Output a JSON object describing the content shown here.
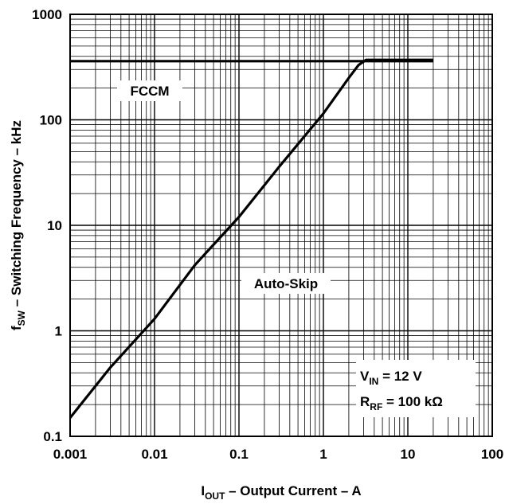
{
  "chart_data": {
    "type": "line",
    "title": "",
    "xlabel": {
      "main": "I",
      "sub": "OUT",
      "rest": " – Output Current – A"
    },
    "ylabel": {
      "main": "f",
      "sub": "SW",
      "rest": " – Switching Frequency – kHz"
    },
    "x_scale": "log",
    "y_scale": "log",
    "xlim": [
      0.001,
      100
    ],
    "ylim": [
      0.1,
      1000
    ],
    "grid": true,
    "x_ticks": [
      "0.001",
      "0.01",
      "0.1",
      "1",
      "10",
      "100"
    ],
    "y_ticks": [
      "0.1",
      "1",
      "10",
      "100",
      "1000"
    ],
    "series": [
      {
        "name": "FCCM",
        "color": "#000000",
        "x": [
          0.001,
          20
        ],
        "y": [
          360,
          360
        ]
      },
      {
        "name": "Auto-Skip",
        "color": "#000000",
        "x": [
          0.001,
          0.003,
          0.01,
          0.03,
          0.1,
          0.3,
          1,
          2,
          2.6,
          3.2,
          20
        ],
        "y": [
          0.15,
          0.45,
          1.3,
          4.2,
          12,
          36,
          115,
          250,
          330,
          370,
          370
        ]
      }
    ],
    "annotations": {
      "fccm": "FCCM",
      "autoskip": "Auto-Skip",
      "vin": {
        "main": "V",
        "sub": "IN",
        "rest": " = 12 V"
      },
      "rrf": {
        "main": "R",
        "sub": "RF",
        "rest": " = 100 kΩ"
      }
    }
  }
}
